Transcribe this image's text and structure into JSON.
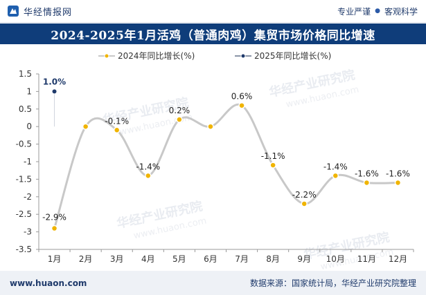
{
  "header": {
    "brand_name": "华经情报网",
    "tagline_left": "专业严谨",
    "tagline_sep": "●",
    "tagline_right": "客观科学"
  },
  "watermark": {
    "text_cn": "华经产业研究院",
    "text_url": "www.huaon.com"
  },
  "chart_data": {
    "type": "line",
    "title": "2024-2025年1月活鸡（普通肉鸡）集贸市场价格同比增速",
    "xlabel": "",
    "ylabel": "",
    "categories": [
      "1月",
      "2月",
      "3月",
      "4月",
      "5月",
      "6月",
      "7月",
      "8月",
      "9月",
      "10月",
      "11月",
      "12月"
    ],
    "ylim": [
      -3.5,
      1.5
    ],
    "yticks": [
      "1.5",
      "1",
      "0.5",
      "0",
      "-0.5",
      "-1",
      "-1.5",
      "-2",
      "-2.5",
      "-3",
      "-3.5"
    ],
    "ytick_values": [
      1.5,
      1,
      0.5,
      0,
      -0.5,
      -1,
      -1.5,
      -2,
      -2.5,
      -3,
      -3.5
    ],
    "legend_position": "top-center",
    "grid": false,
    "series": [
      {
        "name": "2024年同比增长(%)",
        "color": "#c8c8c8",
        "marker_color": "#f0b400",
        "smooth": true,
        "values": [
          -2.9,
          0.0,
          -0.1,
          -1.4,
          0.2,
          0.0,
          0.6,
          -1.1,
          -2.2,
          -1.4,
          -1.6,
          -1.6
        ],
        "labels": [
          "-2.9%",
          "",
          "-0.1%",
          "-1.4%",
          "0.2%",
          "",
          "0.6%",
          "-1.1%",
          "-2.2%",
          "-1.4%",
          "-1.6%",
          "-1.6%"
        ]
      },
      {
        "name": "2025年同比增长(%)",
        "color": "#8a94a6",
        "marker_color": "#1f3a6b",
        "smooth": false,
        "values": [
          1.0,
          null,
          null,
          null,
          null,
          null,
          null,
          null,
          null,
          null,
          null,
          null
        ],
        "labels": [
          "1.0%",
          "",
          "",
          "",
          "",
          "",
          "",
          "",
          "",
          "",
          "",
          ""
        ]
      }
    ]
  },
  "footer": {
    "url": "www.huaon.com",
    "source": "数据来源：国家统计局，华经产业研究院整理"
  }
}
